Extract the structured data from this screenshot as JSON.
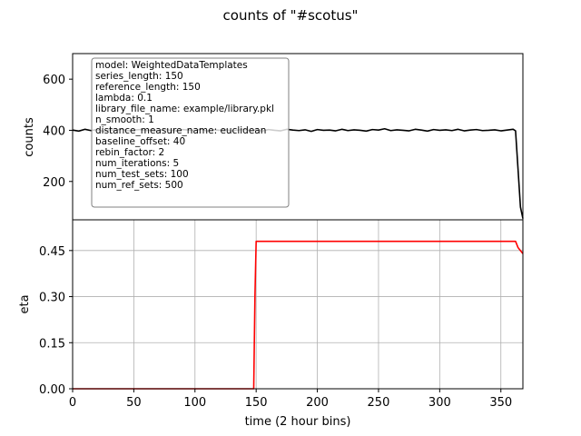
{
  "chart_data": [
    {
      "type": "line",
      "title": "counts of \"#scotus\"",
      "ylabel": "counts",
      "xlim": [
        0,
        368
      ],
      "ylim": [
        50,
        700
      ],
      "yticks": [
        200,
        400,
        600
      ],
      "grid": false,
      "series": [
        {
          "color": "#000000",
          "x": [
            0,
            5,
            10,
            15,
            20,
            25,
            30,
            35,
            40,
            45,
            50,
            55,
            60,
            65,
            70,
            75,
            80,
            85,
            90,
            95,
            100,
            105,
            110,
            115,
            120,
            125,
            130,
            135,
            140,
            145,
            150,
            155,
            160,
            165,
            170,
            175,
            180,
            185,
            190,
            195,
            200,
            205,
            210,
            215,
            220,
            225,
            230,
            235,
            240,
            245,
            250,
            255,
            260,
            265,
            270,
            275,
            280,
            285,
            290,
            295,
            300,
            305,
            310,
            315,
            320,
            325,
            330,
            335,
            340,
            345,
            350,
            355,
            360,
            362,
            364,
            366,
            368
          ],
          "y": [
            401,
            397,
            404,
            399,
            403,
            396,
            402,
            400,
            405,
            398,
            401,
            403,
            399,
            402,
            397,
            404,
            400,
            398,
            403,
            401,
            399,
            404,
            397,
            402,
            400,
            403,
            398,
            401,
            404,
            399,
            402,
            397,
            403,
            400,
            398,
            404,
            401,
            399,
            402,
            396,
            403,
            400,
            401,
            398,
            404,
            399,
            402,
            400,
            397,
            403,
            401,
            406,
            399,
            402,
            400,
            398,
            404,
            401,
            397,
            403,
            400,
            402,
            399,
            404,
            398,
            401,
            403,
            399,
            400,
            402,
            398,
            401,
            404,
            398,
            250,
            100,
            55
          ]
        }
      ],
      "legend_box": {
        "placement": "top-left",
        "lines": [
          "model: WeightedDataTemplates",
          "series_length: 150",
          "reference_length: 150",
          "lambda: 0.1",
          "library_file_name: example/library.pkl",
          "n_smooth: 1",
          "distance_measure_name: euclidean",
          "baseline_offset: 40",
          "rebin_factor: 2",
          "num_iterations: 5",
          "num_test_sets: 100",
          "num_ref_sets: 500"
        ]
      }
    },
    {
      "type": "line",
      "ylabel": "eta",
      "xlabel": "time (2 hour bins)",
      "xlim": [
        0,
        368
      ],
      "ylim": [
        0,
        0.55
      ],
      "xticks": [
        0,
        50,
        100,
        150,
        200,
        250,
        300,
        350
      ],
      "yticks": [
        0.0,
        0.15,
        0.3,
        0.45
      ],
      "ytick_labels": [
        "0.00",
        "0.15",
        "0.30",
        "0.45"
      ],
      "grid": true,
      "label_color": "#ff0000",
      "series": [
        {
          "color": "#ff0000",
          "x": [
            0,
            148,
            149,
            150,
            360,
            362,
            364,
            366,
            368
          ],
          "y": [
            0.0,
            0.0,
            0.3,
            0.48,
            0.48,
            0.48,
            0.46,
            0.45,
            0.44
          ]
        }
      ]
    }
  ]
}
